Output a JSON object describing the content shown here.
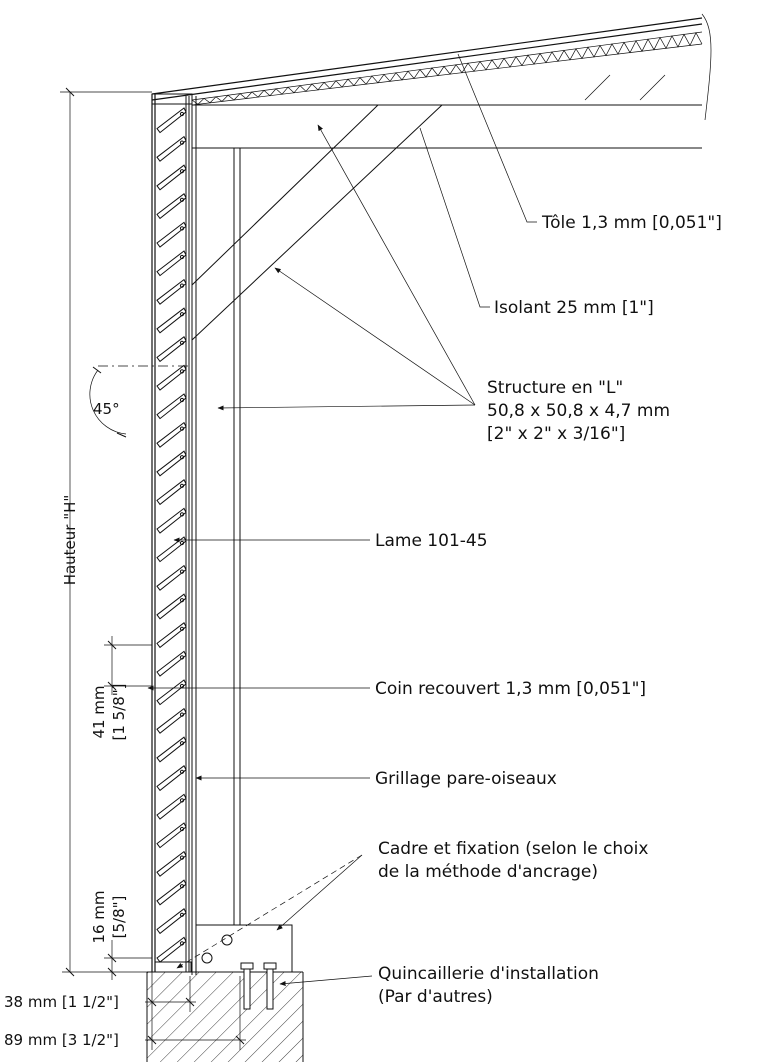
{
  "callouts": {
    "tole": "Tôle 1,3 mm [0,051\"]",
    "isolant": "Isolant 25 mm [1\"]",
    "structure_1": "Structure en \"L\"",
    "structure_2": "50,8 x 50,8 x 4,7 mm",
    "structure_3": "[2\" x 2\" x 3/16\"]",
    "lame": "Lame 101-45",
    "coin": "Coin recouvert 1,3 mm [0,051\"]",
    "grillage": "Grillage pare-oiseaux",
    "cadre_1": "Cadre et fixation (selon le choix",
    "cadre_2": "de la méthode d'ancrage)",
    "quincaillerie_1": "Quincaillerie d'installation",
    "quincaillerie_2": "(Par d'autres)"
  },
  "dimensions": {
    "angle": "45°",
    "hauteur": "Hauteur \"H\"",
    "pitch_mm": "41 mm",
    "pitch_in": "[1 5/8\"]",
    "base_mm": "16 mm",
    "base_in": "[5/8\"]",
    "width_38": "38 mm [1 1/2\"]",
    "width_89": "89 mm [3 1/2\"]"
  },
  "louver_count": 30
}
